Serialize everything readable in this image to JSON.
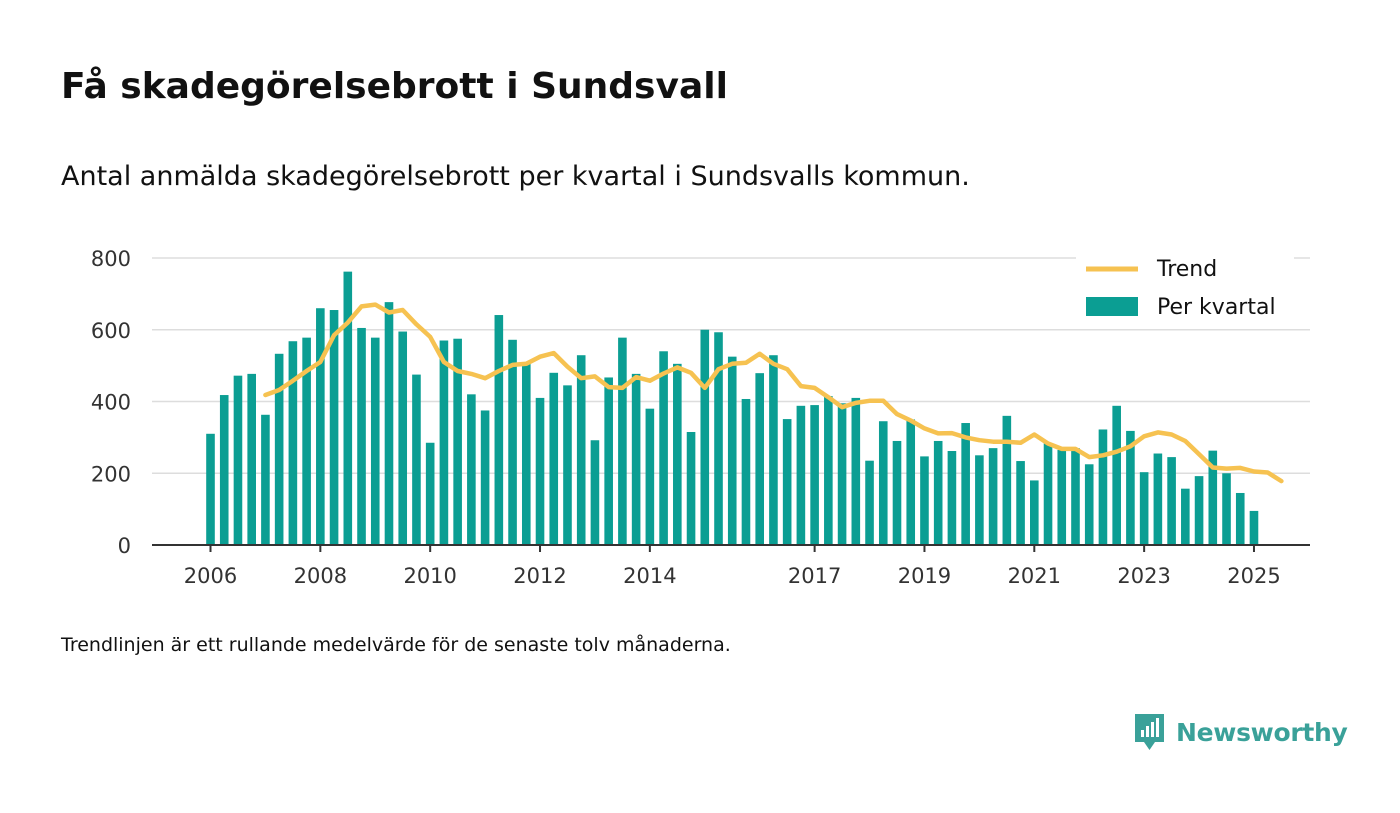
{
  "title": "Få skadegörelsebrott i Sundsvall",
  "subtitle": "Antal anmälda skadegörelsebrott per kvartal i Sundsvalls kommun.",
  "footnote": "Trendlinjen är ett rullande medelvärde för de senaste tolv månaderna.",
  "brand": {
    "name": "Newsworthy",
    "icon": "newsworthy-logo-icon"
  },
  "colors": {
    "bar": "#0b9e93",
    "trend": "#f6c251",
    "grid": "#dddddd",
    "axis": "#333333",
    "text": "#111111",
    "brand": "#3aa199"
  },
  "chart_data": {
    "type": "bar",
    "x_start": "2006",
    "x_frequency": "quarterly",
    "ylim": [
      0,
      800
    ],
    "yticks": [
      0,
      200,
      400,
      600,
      800
    ],
    "xticks": [
      "2006",
      "2008",
      "2010",
      "2012",
      "2014",
      "2017",
      "2019",
      "2021",
      "2023",
      "2025"
    ],
    "grid": true,
    "legend_position": "top-right",
    "series": [
      {
        "name": "Per kvartal",
        "kind": "bar",
        "values": [
          310,
          418,
          472,
          477,
          363,
          533,
          568,
          578,
          660,
          655,
          762,
          605,
          578,
          677,
          595,
          475,
          285,
          570,
          575,
          420,
          375,
          641,
          572,
          510,
          410,
          480,
          445,
          529,
          292,
          467,
          578,
          477,
          380,
          540,
          505,
          315,
          600,
          593,
          525,
          407,
          479,
          529,
          351,
          388,
          390,
          415,
          395,
          410,
          235,
          345,
          290,
          350,
          247,
          290,
          262,
          340,
          250,
          270,
          360,
          234,
          180,
          283,
          265,
          270,
          225,
          322,
          388,
          318,
          203,
          255,
          245,
          157,
          192,
          263,
          200,
          145,
          95
        ]
      },
      {
        "name": "Trend",
        "kind": "line",
        "start_index": 4,
        "values": [
          418,
          432,
          458,
          485,
          510,
          585,
          620,
          665,
          670,
          648,
          655,
          615,
          580,
          510,
          485,
          477,
          465,
          485,
          502,
          505,
          525,
          535,
          497,
          465,
          470,
          440,
          438,
          468,
          458,
          478,
          495,
          480,
          438,
          490,
          505,
          508,
          533,
          505,
          490,
          443,
          438,
          412,
          384,
          396,
          402,
          402,
          365,
          347,
          325,
          311,
          312,
          300,
          292,
          288,
          288,
          285,
          308,
          283,
          268,
          268,
          245,
          250,
          260,
          275,
          303,
          314,
          308,
          290,
          253,
          216,
          213,
          215,
          205,
          202,
          178
        ]
      }
    ]
  }
}
